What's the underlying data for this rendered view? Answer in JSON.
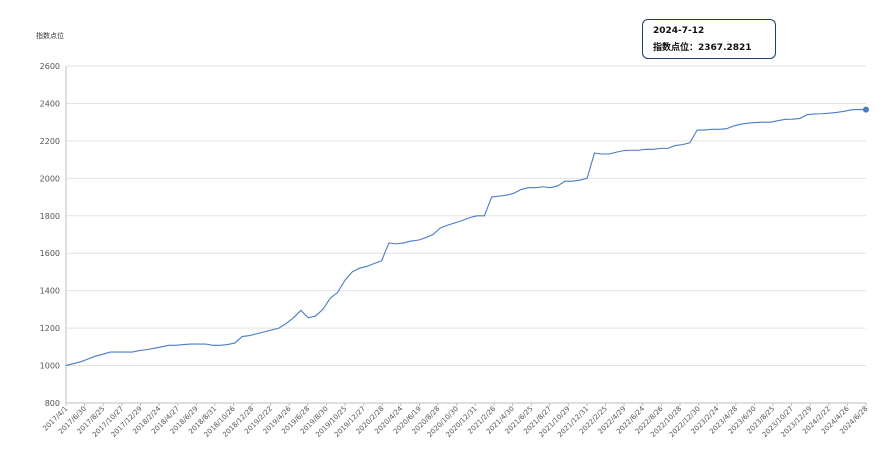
{
  "y_unit_label": "指数点位",
  "tooltip": {
    "date": "2024-7-12",
    "label": "指数点位：",
    "value": "2367.2821"
  },
  "colors": {
    "line": "#4a7cc4",
    "grid": "#e3e3e3",
    "axis": "#bfbfbf",
    "text": "#555555",
    "tooltip_border": "#1f3d73"
  },
  "chart_data": {
    "type": "line",
    "title": "",
    "ylabel": "指数点位",
    "xlabel": "",
    "ylim": [
      800,
      2600
    ],
    "yticks": [
      800,
      1000,
      1200,
      1400,
      1600,
      1800,
      2000,
      2200,
      2400,
      2600
    ],
    "grid": true,
    "xtick_labels": [
      "2017/4/1",
      "2017/6/30",
      "2017/8/25",
      "2017/10/27",
      "2017/12/29",
      "2018/2/24",
      "2018/4/27",
      "2018/6/29",
      "2018/8/31",
      "2018/10/26",
      "2018/12/28",
      "2019/2/22",
      "2019/4/26",
      "2019/6/28",
      "2019/8/30",
      "2019/10/25",
      "2019/12/27",
      "2020/2/28",
      "2020/4/24",
      "2020/6/19",
      "2020/8/28",
      "2020/10/30",
      "2020/12/31",
      "2021/2/26",
      "2021/4/30",
      "2021/6/25",
      "2021/8/27",
      "2021/10/29",
      "2021/12/31",
      "2022/2/25",
      "2022/4/29",
      "2022/6/24",
      "2022/8/26",
      "2022/10/28",
      "2022/12/30",
      "2023/2/24",
      "2023/4/28",
      "2023/6/30",
      "2023/8/25",
      "2023/10/27",
      "2023/12/29",
      "2024/2/22",
      "2024/4/26",
      "2024/6/28"
    ],
    "series": [
      {
        "name": "",
        "values": [
          1000,
          1010,
          1020,
          1035,
          1050,
          1060,
          1072,
          1072,
          1072,
          1072,
          1080,
          1085,
          1092,
          1100,
          1108,
          1108,
          1112,
          1115,
          1115,
          1115,
          1108,
          1108,
          1112,
          1120,
          1155,
          1160,
          1170,
          1180,
          1190,
          1200,
          1225,
          1255,
          1295,
          1255,
          1265,
          1300,
          1360,
          1390,
          1455,
          1500,
          1520,
          1530,
          1545,
          1560,
          1655,
          1650,
          1655,
          1665,
          1670,
          1683,
          1700,
          1735,
          1750,
          1762,
          1775,
          1790,
          1800,
          1800,
          1900,
          1905,
          1910,
          1920,
          1940,
          1950,
          1950,
          1955,
          1950,
          1960,
          1985,
          1985,
          1990,
          2000,
          2135,
          2130,
          2130,
          2140,
          2148,
          2150,
          2150,
          2155,
          2155,
          2160,
          2160,
          2175,
          2180,
          2190,
          2258,
          2258,
          2262,
          2262,
          2265,
          2280,
          2290,
          2295,
          2298,
          2300,
          2300,
          2308,
          2315,
          2316,
          2320,
          2340,
          2344,
          2345,
          2348,
          2352,
          2358,
          2366,
          2368,
          2367.2821
        ]
      }
    ]
  }
}
